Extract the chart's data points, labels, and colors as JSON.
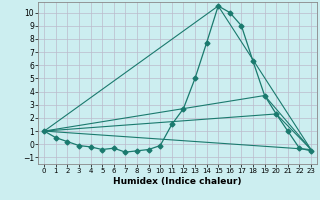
{
  "xlabel": "Humidex (Indice chaleur)",
  "background_color": "#cceef0",
  "grid_color": "#bbbbcc",
  "line_color": "#1a7a6e",
  "xlim": [
    -0.5,
    23.5
  ],
  "ylim": [
    -1.5,
    10.8
  ],
  "xticks": [
    0,
    1,
    2,
    3,
    4,
    5,
    6,
    7,
    8,
    9,
    10,
    11,
    12,
    13,
    14,
    15,
    16,
    17,
    18,
    19,
    20,
    21,
    22,
    23
  ],
  "yticks": [
    -1,
    0,
    1,
    2,
    3,
    4,
    5,
    6,
    7,
    8,
    9,
    10
  ],
  "main_curve": {
    "x": [
      0,
      1,
      2,
      3,
      4,
      5,
      6,
      7,
      8,
      9,
      10,
      11,
      12,
      13,
      14,
      15,
      16,
      17,
      18,
      19,
      20,
      21,
      22,
      23
    ],
    "y": [
      1.0,
      0.5,
      0.2,
      -0.1,
      -0.2,
      -0.4,
      -0.3,
      -0.6,
      -0.5,
      -0.4,
      -0.1,
      1.5,
      2.7,
      5.0,
      7.7,
      10.5,
      10.0,
      9.0,
      6.3,
      3.7,
      2.3,
      1.0,
      -0.3,
      -0.5
    ]
  },
  "straight_lines": [
    {
      "x": [
        0,
        23
      ],
      "y": [
        1.0,
        -0.4
      ]
    },
    {
      "x": [
        0,
        15,
        23
      ],
      "y": [
        1.0,
        10.5,
        -0.4
      ]
    },
    {
      "x": [
        0,
        19,
        23
      ],
      "y": [
        1.0,
        3.7,
        -0.4
      ]
    },
    {
      "x": [
        0,
        20,
        23
      ],
      "y": [
        1.0,
        2.3,
        -0.4
      ]
    }
  ]
}
